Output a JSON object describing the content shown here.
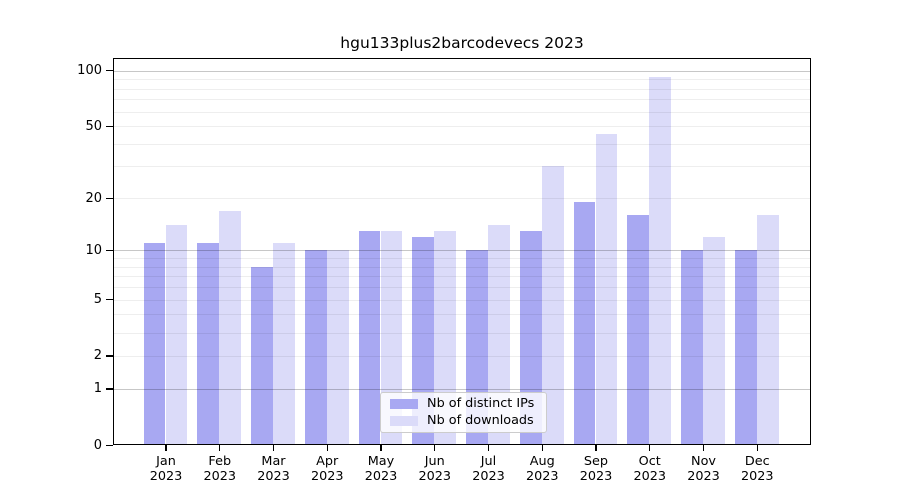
{
  "title": "hgu133plus2barcodevecs 2023",
  "chart_data": {
    "type": "bar",
    "title": "hgu133plus2barcodevecs 2023",
    "categories": [
      "Jan 2023",
      "Feb 2023",
      "Mar 2023",
      "Apr 2023",
      "May 2023",
      "Jun 2023",
      "Jul 2023",
      "Aug 2023",
      "Sep 2023",
      "Oct 2023",
      "Nov 2023",
      "Dec 2023"
    ],
    "series": [
      {
        "name": "Nb of distinct IPs",
        "color": "#a8a8f2",
        "values": [
          11,
          11,
          8,
          10,
          13,
          12,
          10,
          13,
          19,
          16,
          10,
          10
        ]
      },
      {
        "name": "Nb of downloads",
        "color": "#dbdbf9",
        "values": [
          14,
          17,
          11,
          10,
          13,
          13,
          14,
          30,
          45,
          92,
          12,
          16
        ]
      }
    ],
    "y_scale": "log1p",
    "ylim": [
      0,
      117
    ],
    "y_ticks": [
      0,
      1,
      2,
      5,
      10,
      20,
      50,
      100
    ],
    "major_gridlines": [
      1,
      10,
      100
    ],
    "minor_gridlines": [
      2,
      3,
      4,
      5,
      6,
      7,
      8,
      9,
      20,
      30,
      40,
      50,
      60,
      70,
      80,
      90
    ],
    "grid": "on",
    "legend_position": "lower center",
    "xlabel": "",
    "ylabel": ""
  }
}
